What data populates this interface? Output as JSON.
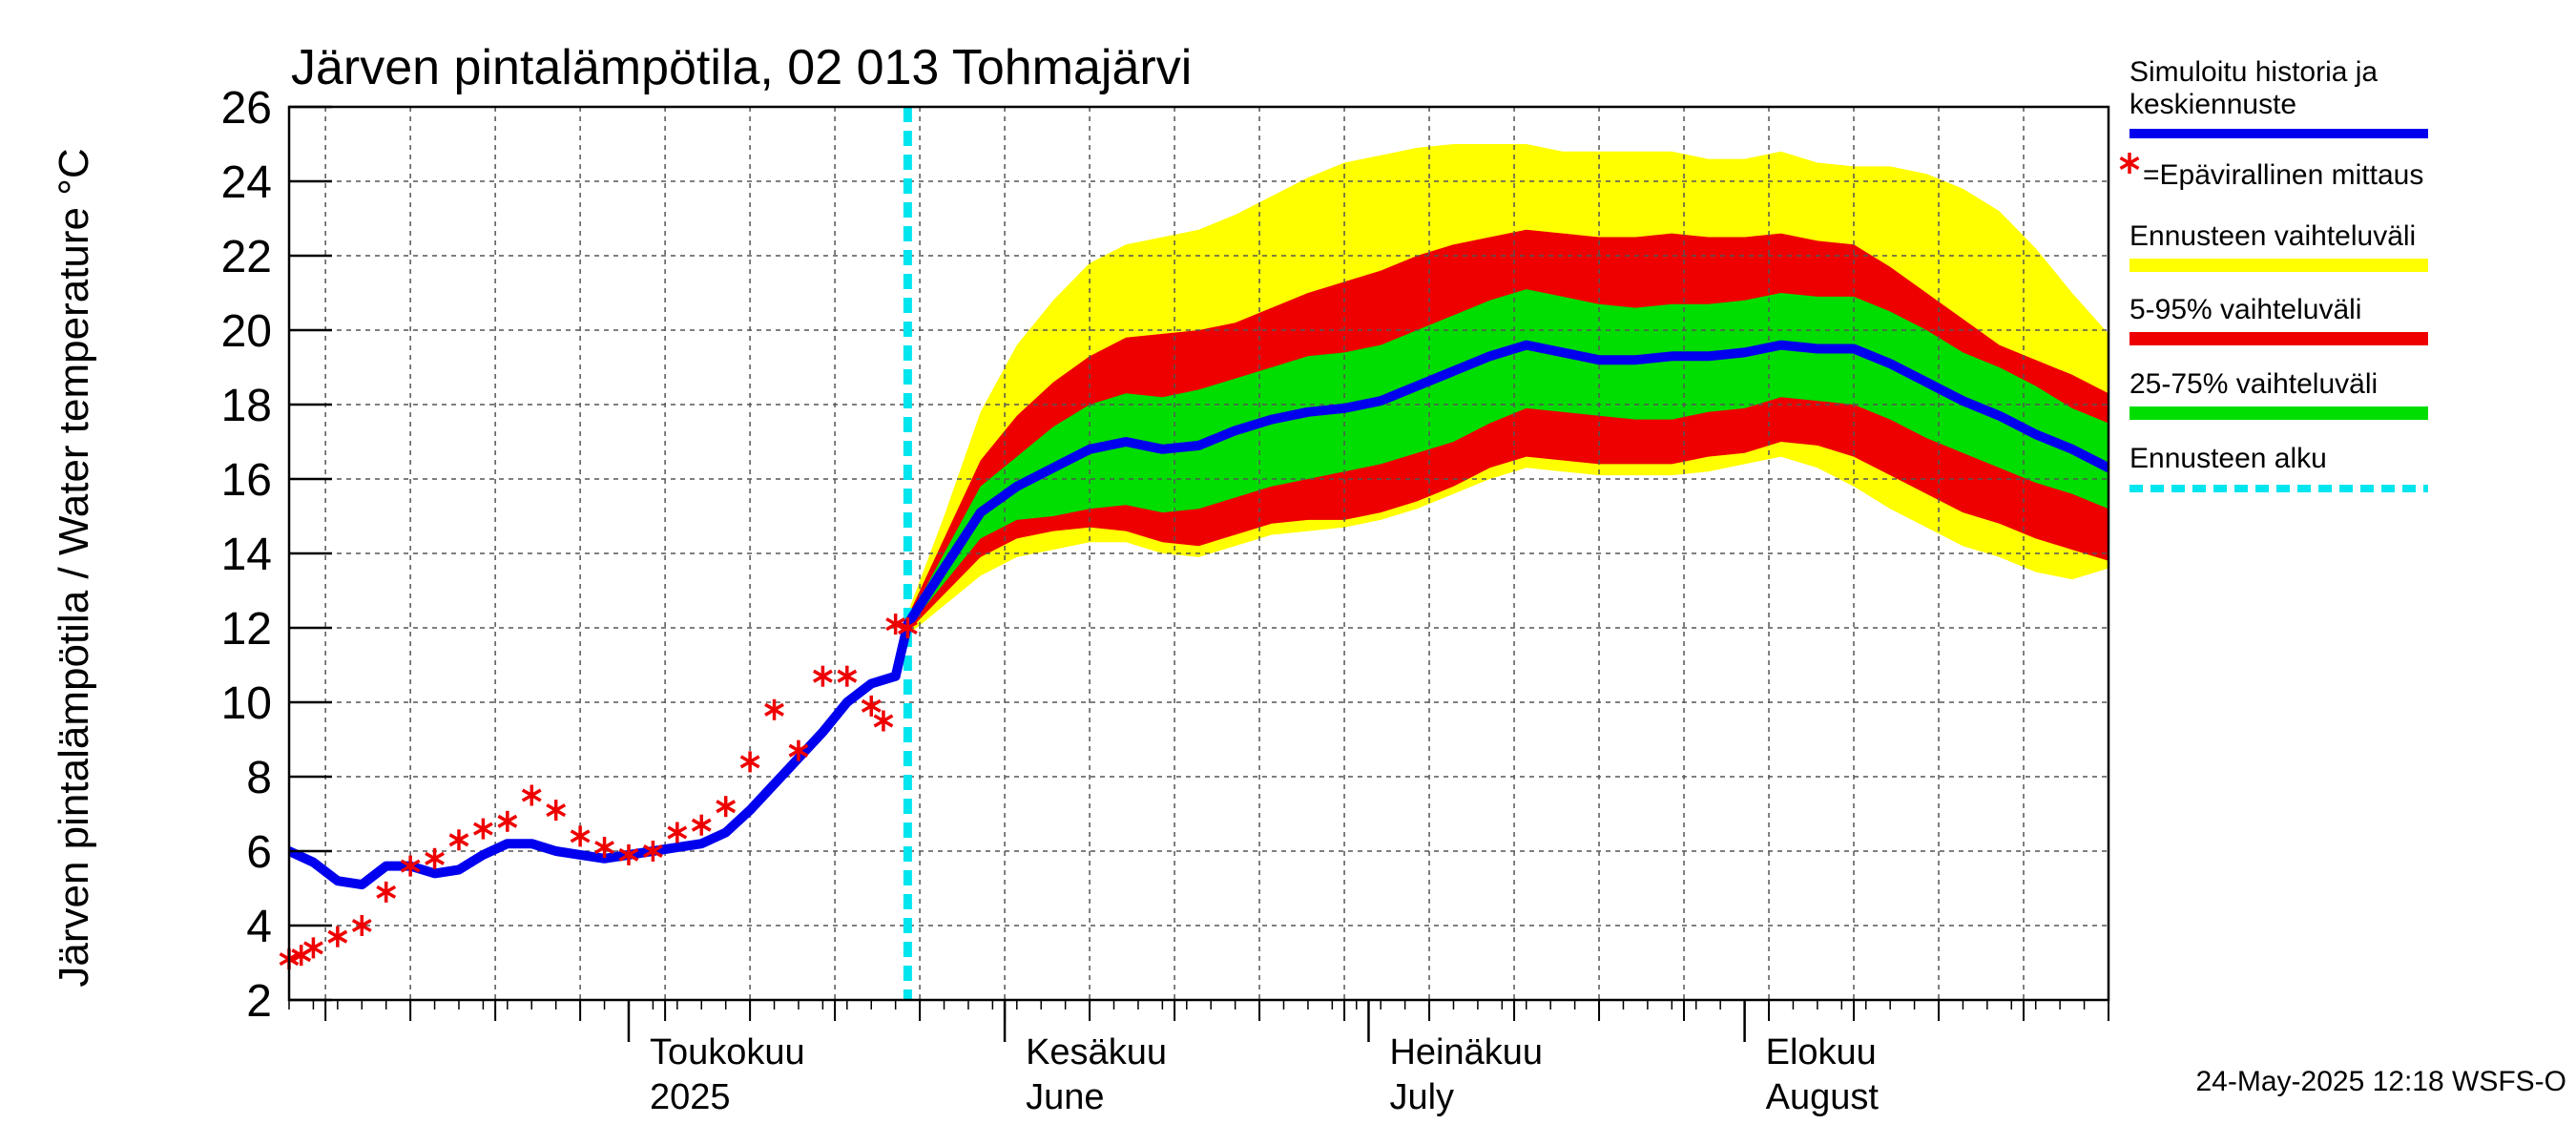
{
  "chart_data": {
    "type": "area",
    "title": "Järven pintalämpötila, 02 013 Tohmajärvi",
    "ylabel": "Järven pintalämpötila / Water temperature °C",
    "xlabel": "",
    "ylim": [
      2,
      26
    ],
    "yticks": [
      2,
      4,
      6,
      8,
      10,
      12,
      14,
      16,
      18,
      20,
      22,
      24,
      26
    ],
    "xlim": [
      "2025-04-03",
      "2025-08-31"
    ],
    "grid": true,
    "forecast_start": "2025-05-24",
    "month_labels": [
      {
        "date": "2025-05-01",
        "fi": "Toukokuu",
        "en": "2025"
      },
      {
        "date": "2025-06-01",
        "fi": "Kesäkuu",
        "en": "June"
      },
      {
        "date": "2025-07-01",
        "fi": "Heinäkuu",
        "en": "July"
      },
      {
        "date": "2025-08-01",
        "fi": "Elokuu",
        "en": "August"
      }
    ],
    "legend": {
      "position": "right",
      "entries": [
        {
          "label": "Simuloitu historia ja keskiennuste",
          "color": "#0000ee",
          "style": "line"
        },
        {
          "label": "=Epävirallinen mittaus",
          "color": "#ee0000",
          "style": "marker"
        },
        {
          "label": "Ennusteen vaihteluväli",
          "color": "#ffff00",
          "style": "band"
        },
        {
          "label": "5-95% vaihteluväli",
          "color": "#ee0000",
          "style": "band"
        },
        {
          "label": "25-75% vaihteluväli",
          "color": "#00dd00",
          "style": "band"
        },
        {
          "label": "Ennusteen alku",
          "color": "#00e5ee",
          "style": "dashed"
        }
      ]
    },
    "timestamp": "24-May-2025 12:18 WSFS-O",
    "colors": {
      "median": "#0000ee",
      "observation": "#ee0000",
      "range_full": "#ffff00",
      "range_5_95": "#ee0000",
      "range_25_75": "#00dd00",
      "forecast_start": "#00e5ee"
    },
    "median_history": {
      "dates": [
        "2025-04-03",
        "2025-04-05",
        "2025-04-07",
        "2025-04-09",
        "2025-04-11",
        "2025-04-13",
        "2025-04-15",
        "2025-04-17",
        "2025-04-19",
        "2025-04-21",
        "2025-04-23",
        "2025-04-25",
        "2025-04-27",
        "2025-04-29",
        "2025-05-01",
        "2025-05-03",
        "2025-05-05",
        "2025-05-07",
        "2025-05-09",
        "2025-05-11",
        "2025-05-13",
        "2025-05-15",
        "2025-05-17",
        "2025-05-19",
        "2025-05-21",
        "2025-05-23",
        "2025-05-24"
      ],
      "values": [
        6.0,
        5.7,
        5.2,
        5.1,
        5.6,
        5.6,
        5.4,
        5.5,
        5.9,
        6.2,
        6.2,
        6.0,
        5.9,
        5.8,
        5.9,
        6.0,
        6.1,
        6.2,
        6.5,
        7.1,
        7.8,
        8.5,
        9.2,
        10.0,
        10.5,
        10.7,
        12.1
      ]
    },
    "observations": {
      "dates": [
        "2025-04-03",
        "2025-04-04",
        "2025-04-05",
        "2025-04-07",
        "2025-04-09",
        "2025-04-11",
        "2025-04-13",
        "2025-04-15",
        "2025-04-17",
        "2025-04-19",
        "2025-04-21",
        "2025-04-23",
        "2025-04-25",
        "2025-04-27",
        "2025-04-29",
        "2025-05-01",
        "2025-05-03",
        "2025-05-05",
        "2025-05-07",
        "2025-05-09",
        "2025-05-11",
        "2025-05-13",
        "2025-05-15",
        "2025-05-17",
        "2025-05-19",
        "2025-05-21",
        "2025-05-22",
        "2025-05-23",
        "2025-05-24"
      ],
      "values": [
        3.1,
        3.2,
        3.4,
        3.7,
        4.0,
        4.9,
        5.6,
        5.8,
        6.3,
        6.6,
        6.8,
        7.5,
        7.1,
        6.4,
        6.1,
        5.9,
        6.0,
        6.5,
        6.7,
        7.2,
        8.4,
        9.8,
        8.7,
        10.7,
        10.7,
        9.9,
        9.5,
        12.1,
        12.0
      ]
    },
    "forecast": {
      "dates": [
        "2025-05-24",
        "2025-05-27",
        "2025-05-30",
        "2025-06-02",
        "2025-06-05",
        "2025-06-08",
        "2025-06-11",
        "2025-06-14",
        "2025-06-17",
        "2025-06-20",
        "2025-06-23",
        "2025-06-26",
        "2025-06-29",
        "2025-07-02",
        "2025-07-05",
        "2025-07-08",
        "2025-07-11",
        "2025-07-14",
        "2025-07-17",
        "2025-07-20",
        "2025-07-23",
        "2025-07-26",
        "2025-07-29",
        "2025-08-01",
        "2025-08-04",
        "2025-08-07",
        "2025-08-10",
        "2025-08-13",
        "2025-08-16",
        "2025-08-19",
        "2025-08-22",
        "2025-08-25",
        "2025-08-28",
        "2025-08-31"
      ],
      "median": [
        12.1,
        13.6,
        15.1,
        15.8,
        16.3,
        16.8,
        17.0,
        16.8,
        16.9,
        17.3,
        17.6,
        17.8,
        17.9,
        18.1,
        18.5,
        18.9,
        19.3,
        19.6,
        19.4,
        19.2,
        19.2,
        19.3,
        19.3,
        19.4,
        19.6,
        19.5,
        19.5,
        19.1,
        18.6,
        18.1,
        17.7,
        17.2,
        16.8,
        16.3
      ],
      "p25": [
        12.0,
        13.2,
        14.4,
        14.9,
        15.0,
        15.2,
        15.3,
        15.1,
        15.2,
        15.5,
        15.8,
        16.0,
        16.2,
        16.4,
        16.7,
        17.0,
        17.5,
        17.9,
        17.8,
        17.7,
        17.6,
        17.6,
        17.8,
        17.9,
        18.2,
        18.1,
        18.0,
        17.6,
        17.1,
        16.7,
        16.3,
        15.9,
        15.6,
        15.2
      ],
      "p75": [
        12.2,
        14.0,
        15.8,
        16.6,
        17.4,
        18.0,
        18.3,
        18.2,
        18.4,
        18.7,
        19.0,
        19.3,
        19.4,
        19.6,
        20.0,
        20.4,
        20.8,
        21.1,
        20.9,
        20.7,
        20.6,
        20.7,
        20.7,
        20.8,
        21.0,
        20.9,
        20.9,
        20.5,
        20.0,
        19.4,
        19.0,
        18.5,
        17.9,
        17.5
      ],
      "p05": [
        11.9,
        12.9,
        13.9,
        14.4,
        14.6,
        14.7,
        14.6,
        14.3,
        14.2,
        14.5,
        14.8,
        14.9,
        14.9,
        15.1,
        15.4,
        15.8,
        16.3,
        16.6,
        16.5,
        16.4,
        16.4,
        16.4,
        16.6,
        16.7,
        17.0,
        16.9,
        16.6,
        16.1,
        15.6,
        15.1,
        14.8,
        14.4,
        14.1,
        13.8
      ],
      "p95": [
        12.3,
        14.4,
        16.5,
        17.7,
        18.6,
        19.3,
        19.8,
        19.9,
        20.0,
        20.2,
        20.6,
        21.0,
        21.3,
        21.6,
        22.0,
        22.3,
        22.5,
        22.7,
        22.6,
        22.5,
        22.5,
        22.6,
        22.5,
        22.5,
        22.6,
        22.4,
        22.3,
        21.7,
        21.0,
        20.3,
        19.6,
        19.2,
        18.8,
        18.3
      ],
      "min": [
        11.8,
        12.6,
        13.4,
        13.9,
        14.1,
        14.3,
        14.3,
        14.0,
        13.9,
        14.2,
        14.5,
        14.6,
        14.7,
        14.9,
        15.2,
        15.6,
        16.0,
        16.3,
        16.2,
        16.1,
        16.1,
        16.1,
        16.2,
        16.4,
        16.6,
        16.3,
        15.8,
        15.2,
        14.7,
        14.2,
        13.9,
        13.5,
        13.3,
        13.6
      ],
      "max": [
        12.4,
        15.0,
        17.8,
        19.6,
        20.8,
        21.8,
        22.3,
        22.5,
        22.7,
        23.1,
        23.6,
        24.1,
        24.5,
        24.7,
        24.9,
        25.0,
        25.0,
        25.0,
        24.8,
        24.8,
        24.8,
        24.8,
        24.6,
        24.6,
        24.8,
        24.5,
        24.4,
        24.4,
        24.2,
        23.8,
        23.2,
        22.2,
        21.0,
        19.9
      ]
    }
  }
}
